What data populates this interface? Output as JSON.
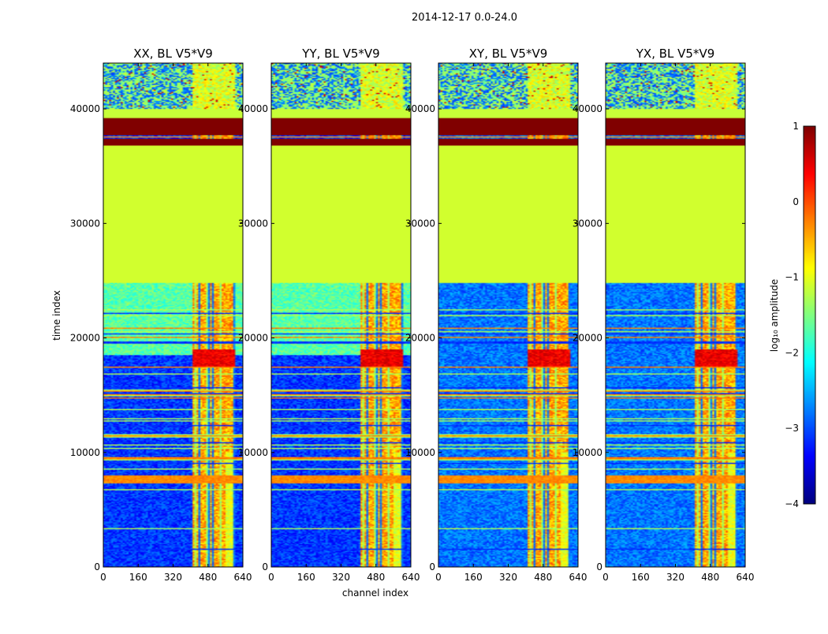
{
  "chart_data": {
    "type": "heatmap",
    "suptitle": "2014-12-17 0.0-24.0",
    "xlabel": "channel index",
    "ylabel": "time index",
    "xlim": [
      0,
      640
    ],
    "ylim": [
      0,
      44000
    ],
    "xticks": [
      0,
      160,
      320,
      480,
      640
    ],
    "yticks": [
      0,
      10000,
      20000,
      30000,
      40000
    ],
    "colormap": "jet",
    "colorbar": {
      "label": "log₁₀ amplitude",
      "range": [
        -4,
        1
      ],
      "ticks": [
        1,
        0,
        -1,
        -2,
        -3,
        -4
      ],
      "tick_labels": [
        "1",
        "0",
        "−1",
        "−2",
        "−3",
        "−4"
      ]
    },
    "panels": [
      {
        "title": "XX, BL V5*V9",
        "pol": "XX",
        "background_level": -3.1,
        "upper_band_level": -1.7
      },
      {
        "title": "YY, BL V5*V9",
        "pol": "YY",
        "background_level": -3.1,
        "upper_band_level": -1.7
      },
      {
        "title": "XY, BL V5*V9",
        "pol": "XY",
        "background_level": -2.8,
        "upper_band_level": -2.8
      },
      {
        "title": "YX, BL V5*V9",
        "pol": "YX",
        "background_level": -2.8,
        "upper_band_level": -2.8
      }
    ],
    "regions": {
      "flagged_constant_range": [
        24800,
        36300
      ],
      "flagged_constant_level": -1.1,
      "saturated_band_ranges": [
        [
          36800,
          37400
        ],
        [
          37700,
          39200
        ]
      ],
      "saturated_level": 1.0,
      "horizontal_rfi_range": [
        7300,
        8000
      ],
      "horizontal_rfi_level": -0.3,
      "rfi_channel_range": [
        410,
        600
      ],
      "rfi_channel_level": -1.0,
      "lower_tail_channel_start": 560
    }
  }
}
